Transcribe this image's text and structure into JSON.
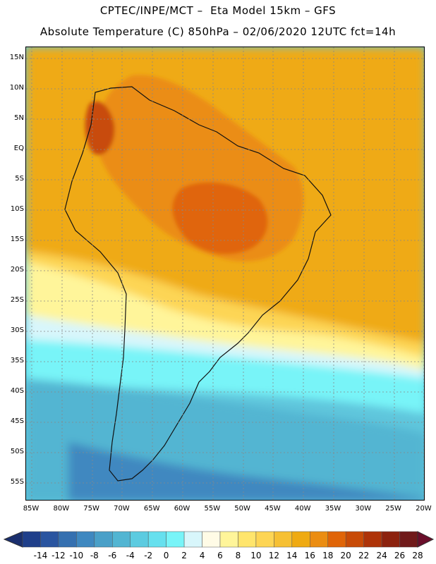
{
  "title_line1": "CPTEC/INPE/MCT –  Eta Model 15km – GFS",
  "title_line2": "Absolute Temperature (C) 850hPa – 02/06/2020 12UTC fct=14h",
  "lat_labels": [
    "15N",
    "10N",
    "5N",
    "EQ",
    "5S",
    "10S",
    "15S",
    "20S",
    "25S",
    "30S",
    "35S",
    "40S",
    "45S",
    "50S",
    "55S"
  ],
  "lon_labels": [
    "85W",
    "80W",
    "75W",
    "70W",
    "65W",
    "60W",
    "55W",
    "50W",
    "45W",
    "40W",
    "35W",
    "30W",
    "25W",
    "20W"
  ],
  "colorbar": {
    "labels": [
      "-14",
      "-12",
      "-10",
      "-8",
      "-6",
      "-4",
      "-2",
      "0",
      "2",
      "4",
      "6",
      "8",
      "10",
      "12",
      "14",
      "16",
      "18",
      "20",
      "22",
      "24",
      "26",
      "28"
    ],
    "colors": [
      "#1f3f8a",
      "#2a55a0",
      "#3570b0",
      "#3f88c0",
      "#4aa0c8",
      "#52b5d2",
      "#5ccbe0",
      "#66e0ee",
      "#78f4f8",
      "#d8f6fb",
      "#fffbe6",
      "#fff59a",
      "#ffe56c",
      "#fdd554",
      "#f6c033",
      "#efaa12",
      "#eb8d12",
      "#e06508",
      "#c84b07",
      "#ae3308",
      "#8c220e",
      "#701a1a"
    ],
    "under_color": "#1a2f6e",
    "over_color": "#6a0e2a"
  }
}
